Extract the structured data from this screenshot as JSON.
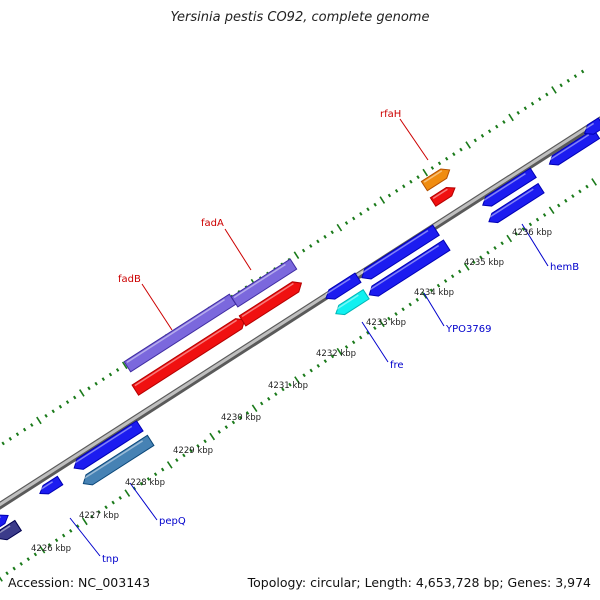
{
  "title": "Yersinia pestis CO92, complete genome",
  "footer": {
    "accession": "Accession: NC_003143",
    "summary": "Topology: circular; Length: 4,653,728 bp; Genes: 3,974"
  },
  "colors": {
    "backbone": "#8f8f8f",
    "forward_ticks": "#1a7a1a",
    "reverse_ticks": "#1a7a1a",
    "forward_label": "#cc0000",
    "reverse_label": "#0000cc",
    "gene_blue": "#1c1cf0",
    "gene_red": "#f01010",
    "gene_purple": "#7b68dd",
    "gene_orange": "#f08c10",
    "gene_cyan": "#10f0f0",
    "gene_steel": "#4682b4",
    "gene_dark": "#3b3b8a"
  },
  "kbp_labels": [
    "4226 kbp",
    "4227 kbp",
    "4228 kbp",
    "4229 kbp",
    "4230 kbp",
    "4231 kbp",
    "4232 kbp",
    "4233 kbp",
    "4234 kbp",
    "4235 kbp",
    "4236 kbp"
  ],
  "forward_gene_labels": [
    "fadB",
    "fadA",
    "rfaH"
  ],
  "reverse_gene_labels": [
    "tnp",
    "pepQ",
    "fre",
    "YPO3769",
    "hemB"
  ]
}
